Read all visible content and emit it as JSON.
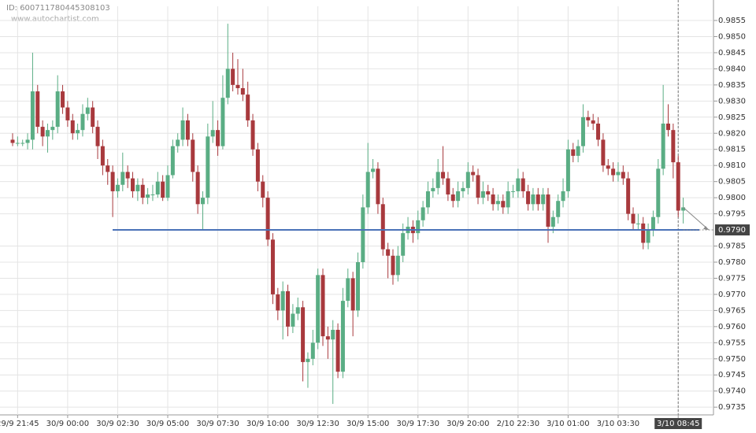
{
  "chart_data": {
    "type": "candlestick",
    "id_text": "ID: 600711780445308103",
    "watermark": "www.autochartist.com",
    "up_color": "#5aad84",
    "down_color": "#a8393d",
    "grid": true,
    "level": {
      "value": 0.979,
      "label": "0.9790",
      "color": "#4a72b8"
    },
    "ylim": [
      0.97326,
      0.98594
    ],
    "yticks": [
      {
        "value": 0.9735,
        "label": "0.9735"
      },
      {
        "value": 0.974,
        "label": "0.9740"
      },
      0.9745,
      {
        "value": 0.975,
        "label": "0.9750"
      },
      0.9755,
      {
        "value": 0.976,
        "label": "0.9760"
      },
      0.9765,
      {
        "value": 0.977,
        "label": "0.9770"
      },
      0.9775,
      {
        "value": 0.978,
        "label": "0.9780"
      },
      0.9785,
      0.9795,
      {
        "value": 0.98,
        "label": "0.9800"
      },
      0.9805,
      {
        "value": 0.981,
        "label": "0.9810"
      },
      0.9815,
      {
        "value": 0.982,
        "label": "0.9820"
      },
      0.9825,
      {
        "value": 0.983,
        "label": "0.9830"
      },
      0.9835,
      {
        "value": 0.984,
        "label": "0.9840"
      },
      0.9845,
      {
        "value": 0.985,
        "label": "0.9850"
      },
      0.9855
    ],
    "categories": [
      null,
      "29/9 21:45",
      null,
      null,
      null,
      null,
      null,
      null,
      null,
      null,
      null,
      "30/9 00:00",
      null,
      null,
      null,
      null,
      null,
      null,
      null,
      null,
      null,
      "30/9 02:30",
      null,
      null,
      null,
      null,
      null,
      null,
      null,
      null,
      null,
      "30/9 05:00",
      null,
      null,
      null,
      null,
      null,
      null,
      null,
      null,
      null,
      "30/9 07:30",
      null,
      null,
      null,
      null,
      null,
      null,
      null,
      null,
      null,
      "30/9 10:00",
      null,
      null,
      null,
      null,
      null,
      null,
      null,
      null,
      null,
      "30/9 12:30",
      null,
      null,
      null,
      null,
      null,
      null,
      null,
      null,
      null,
      "30/9 15:00",
      null,
      null,
      null,
      null,
      null,
      null,
      null,
      null,
      null,
      "30/9 17:30",
      null,
      null,
      null,
      null,
      null,
      null,
      null,
      null,
      null,
      "30/9 20:00",
      null,
      null,
      null,
      null,
      null,
      null,
      null,
      null,
      null,
      "2/10 22:30",
      null,
      null,
      null,
      null,
      null,
      null,
      null,
      null,
      null,
      "3/10 01:00",
      null,
      null,
      null,
      null,
      null,
      null,
      null,
      null,
      null,
      "3/10 03:30",
      null,
      null,
      null,
      null,
      null,
      null,
      null,
      null,
      null,
      null,
      null,
      "3/10 08:45",
      null
    ],
    "ohlc": [
      [
        0.9818,
        0.982,
        0.9816,
        0.9817
      ],
      [
        0.9817,
        0.9819,
        0.9816,
        0.9817
      ],
      [
        0.9817,
        0.9818,
        0.9816,
        0.9817
      ],
      [
        0.9817,
        0.982,
        0.9815,
        0.9818
      ],
      [
        0.9818,
        0.9845,
        0.9815,
        0.9833
      ],
      [
        0.9833,
        0.9835,
        0.982,
        0.9822
      ],
      [
        0.9822,
        0.9824,
        0.9816,
        0.9819
      ],
      [
        0.9819,
        0.9823,
        0.9814,
        0.9821
      ],
      [
        0.9821,
        0.9824,
        0.9818,
        0.9822
      ],
      [
        0.9822,
        0.9838,
        0.982,
        0.9833
      ],
      [
        0.9833,
        0.9835,
        0.9826,
        0.9828
      ],
      [
        0.9828,
        0.983,
        0.9822,
        0.9824
      ],
      [
        0.9824,
        0.9826,
        0.9818,
        0.982
      ],
      [
        0.982,
        0.9823,
        0.9818,
        0.9821
      ],
      [
        0.9821,
        0.9829,
        0.9819,
        0.9826
      ],
      [
        0.9826,
        0.9831,
        0.9824,
        0.9828
      ],
      [
        0.9828,
        0.983,
        0.982,
        0.9822
      ],
      [
        0.9822,
        0.9824,
        0.9812,
        0.9816
      ],
      [
        0.9816,
        0.9818,
        0.9807,
        0.981
      ],
      [
        0.981,
        0.9812,
        0.9804,
        0.9808
      ],
      [
        0.9808,
        0.981,
        0.9794,
        0.9802
      ],
      [
        0.9802,
        0.9806,
        0.98,
        0.9804
      ],
      [
        0.9804,
        0.9814,
        0.9802,
        0.9808
      ],
      [
        0.9808,
        0.981,
        0.9803,
        0.9806
      ],
      [
        0.9806,
        0.9808,
        0.98,
        0.9802
      ],
      [
        0.9802,
        0.9806,
        0.9799,
        0.9804
      ],
      [
        0.9804,
        0.9806,
        0.9798,
        0.98
      ],
      [
        0.98,
        0.9803,
        0.9798,
        0.9801
      ],
      [
        0.9801,
        0.9804,
        0.9799,
        0.9801
      ],
      [
        0.9801,
        0.9808,
        0.98,
        0.9805
      ],
      [
        0.9805,
        0.9807,
        0.9799,
        0.98
      ],
      [
        0.98,
        0.981,
        0.9799,
        0.9807
      ],
      [
        0.9807,
        0.9818,
        0.9806,
        0.9816
      ],
      [
        0.9816,
        0.982,
        0.9814,
        0.9818
      ],
      [
        0.9818,
        0.9828,
        0.9816,
        0.9824
      ],
      [
        0.9824,
        0.9826,
        0.9816,
        0.9818
      ],
      [
        0.9818,
        0.982,
        0.9805,
        0.9808
      ],
      [
        0.9808,
        0.981,
        0.9795,
        0.9798
      ],
      [
        0.9798,
        0.9802,
        0.979,
        0.98
      ],
      [
        0.98,
        0.9823,
        0.9798,
        0.9819
      ],
      [
        0.9819,
        0.983,
        0.9817,
        0.9821
      ],
      [
        0.9821,
        0.9824,
        0.9813,
        0.9816
      ],
      [
        0.9816,
        0.9838,
        0.9815,
        0.9831
      ],
      [
        0.9831,
        0.9854,
        0.9829,
        0.984
      ],
      [
        0.984,
        0.9845,
        0.9833,
        0.9835
      ],
      [
        0.9835,
        0.9843,
        0.9832,
        0.9834
      ],
      [
        0.9834,
        0.984,
        0.983,
        0.9832
      ],
      [
        0.9832,
        0.9836,
        0.9822,
        0.9824
      ],
      [
        0.9824,
        0.9826,
        0.9813,
        0.9815
      ],
      [
        0.9815,
        0.9817,
        0.9802,
        0.9805
      ],
      [
        0.9805,
        0.9807,
        0.9797,
        0.98
      ],
      [
        0.98,
        0.9802,
        0.9785,
        0.9787
      ],
      [
        0.9787,
        0.9789,
        0.9767,
        0.977
      ],
      [
        0.977,
        0.9772,
        0.9762,
        0.9765
      ],
      [
        0.9765,
        0.9774,
        0.9756,
        0.9771
      ],
      [
        0.9771,
        0.9773,
        0.9757,
        0.976
      ],
      [
        0.976,
        0.9767,
        0.9758,
        0.9764
      ],
      [
        0.9764,
        0.9769,
        0.9762,
        0.9766
      ],
      [
        0.9766,
        0.9768,
        0.9743,
        0.9749
      ],
      [
        0.9749,
        0.9752,
        0.9741,
        0.975
      ],
      [
        0.975,
        0.9759,
        0.9748,
        0.9755
      ],
      [
        0.9755,
        0.9778,
        0.9753,
        0.9776
      ],
      [
        0.9776,
        0.9778,
        0.9754,
        0.9757
      ],
      [
        0.9757,
        0.976,
        0.975,
        0.9756
      ],
      [
        0.9756,
        0.9762,
        0.9736,
        0.9759
      ],
      [
        0.9759,
        0.9761,
        0.9744,
        0.9746
      ],
      [
        0.9746,
        0.9772,
        0.9744,
        0.9768
      ],
      [
        0.9768,
        0.9778,
        0.9766,
        0.9775
      ],
      [
        0.9775,
        0.9777,
        0.9757,
        0.9765
      ],
      [
        0.9765,
        0.9783,
        0.9763,
        0.978
      ],
      [
        0.978,
        0.9801,
        0.9778,
        0.9797
      ],
      [
        0.9797,
        0.9817,
        0.9795,
        0.9808
      ],
      [
        0.9808,
        0.9812,
        0.9806,
        0.9809
      ],
      [
        0.9809,
        0.9811,
        0.9795,
        0.9798
      ],
      [
        0.9798,
        0.98,
        0.9782,
        0.9784
      ],
      [
        0.9784,
        0.9786,
        0.9775,
        0.9782
      ],
      [
        0.9782,
        0.9784,
        0.9773,
        0.9776
      ],
      [
        0.9776,
        0.9785,
        0.9774,
        0.9782
      ],
      [
        0.9782,
        0.9792,
        0.978,
        0.9789
      ],
      [
        0.9789,
        0.9794,
        0.9787,
        0.9791
      ],
      [
        0.9791,
        0.9793,
        0.9786,
        0.9789
      ],
      [
        0.9789,
        0.9796,
        0.9787,
        0.9793
      ],
      [
        0.9793,
        0.9799,
        0.9791,
        0.9797
      ],
      [
        0.9797,
        0.9805,
        0.9795,
        0.9802
      ],
      [
        0.9802,
        0.9806,
        0.98,
        0.9803
      ],
      [
        0.9803,
        0.9812,
        0.9801,
        0.9808
      ],
      [
        0.9808,
        0.9816,
        0.9804,
        0.9806
      ],
      [
        0.9806,
        0.9808,
        0.9799,
        0.9801
      ],
      [
        0.9801,
        0.9803,
        0.9797,
        0.9799
      ],
      [
        0.9799,
        0.9805,
        0.9797,
        0.9802
      ],
      [
        0.9802,
        0.9805,
        0.98,
        0.9803
      ],
      [
        0.9803,
        0.9811,
        0.9801,
        0.9808
      ],
      [
        0.9808,
        0.981,
        0.9805,
        0.9807
      ],
      [
        0.9807,
        0.9809,
        0.9798,
        0.98
      ],
      [
        0.98,
        0.9805,
        0.9798,
        0.9802
      ],
      [
        0.9802,
        0.9804,
        0.9799,
        0.9801
      ],
      [
        0.9801,
        0.9803,
        0.9796,
        0.9798
      ],
      [
        0.9798,
        0.9801,
        0.9796,
        0.9799
      ],
      [
        0.9799,
        0.9801,
        0.9795,
        0.9797
      ],
      [
        0.9797,
        0.9805,
        0.9795,
        0.9802
      ],
      [
        0.9802,
        0.9804,
        0.98,
        0.9802
      ],
      [
        0.9802,
        0.9809,
        0.98,
        0.9806
      ],
      [
        0.9806,
        0.9808,
        0.98,
        0.9802
      ],
      [
        0.9802,
        0.9804,
        0.9796,
        0.9798
      ],
      [
        0.9798,
        0.9803,
        0.9796,
        0.9801
      ],
      [
        0.9801,
        0.9803,
        0.9796,
        0.9798
      ],
      [
        0.9798,
        0.9803,
        0.9796,
        0.9801
      ],
      [
        0.9801,
        0.9803,
        0.9786,
        0.9791
      ],
      [
        0.9791,
        0.9796,
        0.9789,
        0.9794
      ],
      [
        0.9794,
        0.9801,
        0.9792,
        0.9799
      ],
      [
        0.9799,
        0.9806,
        0.9797,
        0.9802
      ],
      [
        0.9802,
        0.9818,
        0.98,
        0.9815
      ],
      [
        0.9815,
        0.9817,
        0.9811,
        0.9813
      ],
      [
        0.9813,
        0.9818,
        0.9811,
        0.9816
      ],
      [
        0.9816,
        0.9829,
        0.9814,
        0.9825
      ],
      [
        0.9825,
        0.9827,
        0.9822,
        0.9824
      ],
      [
        0.9824,
        0.9826,
        0.9821,
        0.9823
      ],
      [
        0.9823,
        0.9825,
        0.9816,
        0.9818
      ],
      [
        0.9818,
        0.982,
        0.9808,
        0.981
      ],
      [
        0.981,
        0.9812,
        0.9807,
        0.9809
      ],
      [
        0.9809,
        0.9811,
        0.9805,
        0.9807
      ],
      [
        0.9807,
        0.9811,
        0.9805,
        0.9808
      ],
      [
        0.9808,
        0.981,
        0.9804,
        0.9806
      ],
      [
        0.9806,
        0.9808,
        0.9793,
        0.9795
      ],
      [
        0.9795,
        0.9797,
        0.979,
        0.9792
      ],
      [
        0.9792,
        0.9795,
        0.979,
        0.9792
      ],
      [
        0.9792,
        0.9794,
        0.9784,
        0.9786
      ],
      [
        0.9786,
        0.9792,
        0.9784,
        0.979
      ],
      [
        0.979,
        0.9796,
        0.9788,
        0.9794
      ],
      [
        0.9794,
        0.9812,
        0.9792,
        0.9809
      ],
      [
        0.9809,
        0.9835,
        0.9807,
        0.9823
      ],
      [
        0.9823,
        0.9829,
        0.9819,
        0.9821
      ],
      [
        0.9821,
        0.9823,
        0.9806,
        0.9811
      ],
      [
        0.9811,
        0.9813,
        0.9794,
        0.9796
      ],
      [
        0.9796,
        0.98,
        0.9792,
        0.9797
      ]
    ]
  }
}
